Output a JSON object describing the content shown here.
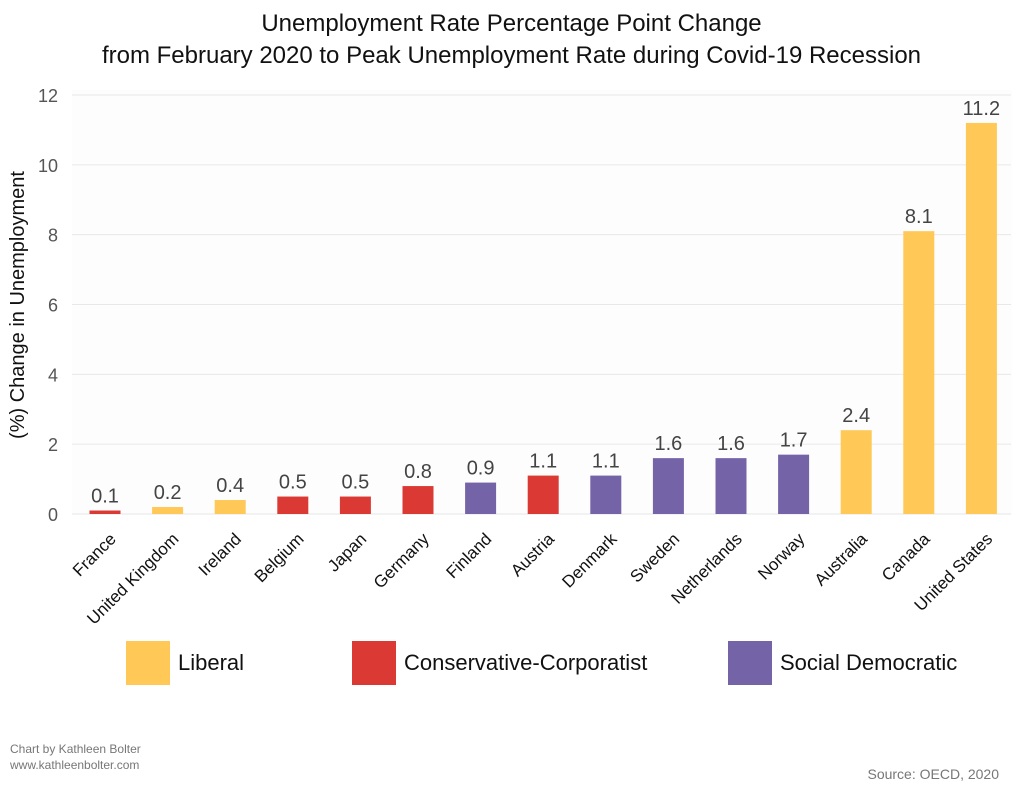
{
  "chart_data": {
    "type": "bar",
    "title": "Unemployment Rate Percentage Point Change",
    "subtitle": "from February 2020 to Peak Unemployment Rate during Covid-19 Recession",
    "xlabel": "",
    "ylabel": "(%) Change in Unemployment",
    "ylim": [
      0,
      12
    ],
    "yticks": [
      0,
      2,
      4,
      6,
      8,
      10,
      12
    ],
    "grid": true,
    "categories": [
      "France",
      "United Kingdom",
      "Ireland",
      "Belgium",
      "Japan",
      "Germany",
      "Finland",
      "Austria",
      "Denmark",
      "Sweden",
      "Netherlands",
      "Norway",
      "Australia",
      "Canada",
      "United States"
    ],
    "values": [
      0.1,
      0.2,
      0.4,
      0.5,
      0.5,
      0.8,
      0.9,
      1.1,
      1.1,
      1.6,
      1.6,
      1.7,
      2.4,
      8.1,
      11.2
    ],
    "value_labels": [
      "0.1",
      "0.2",
      "0.4",
      "0.5",
      "0.5",
      "0.8",
      "0.9",
      "1.1",
      "1.1",
      "1.6",
      "1.6",
      "1.7",
      "2.4",
      "8.1",
      "11.2"
    ],
    "groups": [
      "Conservative-Corporatist",
      "Liberal",
      "Liberal",
      "Conservative-Corporatist",
      "Conservative-Corporatist",
      "Conservative-Corporatist",
      "Social Democratic",
      "Conservative-Corporatist",
      "Social Democratic",
      "Social Democratic",
      "Social Democratic",
      "Social Democratic",
      "Liberal",
      "Liberal",
      "Liberal"
    ],
    "legend": [
      {
        "name": "Liberal",
        "color": "#FFC857"
      },
      {
        "name": "Conservative-Corporatist",
        "color": "#DB3A34"
      },
      {
        "name": "Social Democratic",
        "color": "#7563A8"
      }
    ],
    "legend_position": "bottom"
  },
  "credits": {
    "author": "Chart by Kathleen Bolter",
    "website": "www.kathleenbolter.com",
    "source": "Source: OECD, 2020"
  }
}
